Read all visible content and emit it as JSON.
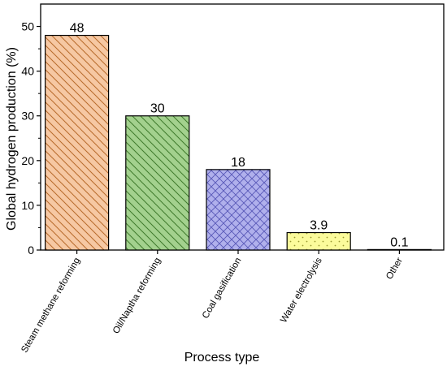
{
  "chart_data": {
    "type": "bar",
    "categories": [
      "Steam methane reforming",
      "Oil/Naptha reforming",
      "Coal gasification",
      "Water electrolysis",
      "Other"
    ],
    "values": [
      48,
      30,
      18,
      3.9,
      0.1
    ],
    "value_labels": [
      "48",
      "30",
      "18",
      "3.9",
      "0.1"
    ],
    "title": "",
    "xlabel": "Process type",
    "ylabel": "Global hydrogen production (%)",
    "ylim": [
      0,
      55
    ],
    "yticks": [
      0,
      10,
      20,
      30,
      40,
      50
    ],
    "ytick_labels": [
      "0",
      "10",
      "20",
      "30",
      "40",
      "50"
    ],
    "grid": false,
    "legend": "none",
    "colors": {
      "fills": [
        "#f6c8a3",
        "#a3d18e",
        "#b0b0ec",
        "#fbfb9b",
        "#ffffff"
      ],
      "patterns": [
        "#b86b2b",
        "#3f7a2c",
        "#5858b8",
        "#9a9a30",
        "#777777"
      ],
      "pattern_types": [
        "diag-back",
        "diag-back",
        "crosshatch",
        "dots",
        "none"
      ]
    }
  }
}
